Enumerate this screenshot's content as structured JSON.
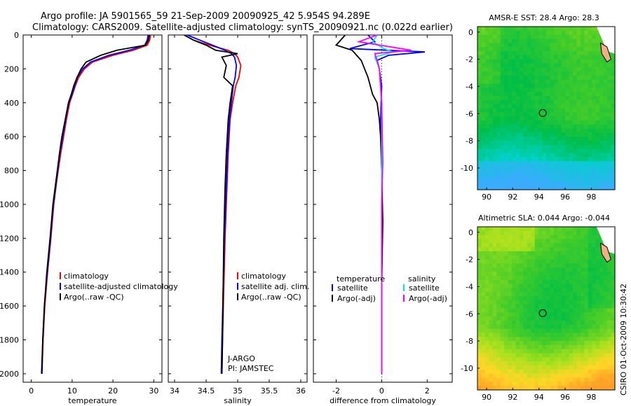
{
  "header": {
    "line1": "Argo profile: JA 5901565_59 21-Sep-2009 20090925_42 5.954S 94.289E",
    "line2": "Climatology: CARS2009. Satellite-adjusted climatology: synTS_20090921.nc (0.022d earlier)"
  },
  "credit": "CSIRO 01-Oct-2009 10:30:42",
  "colors": {
    "red": "#ff0000",
    "blue": "#0000ff",
    "black": "#000000",
    "cyan": "#00e5ff",
    "magenta": "#ff00ff"
  },
  "chart_data": [
    {
      "id": "temperature",
      "type": "line",
      "xlabel": "temperature",
      "xlim": [
        -2,
        32
      ],
      "ylim": [
        0,
        2050
      ],
      "xticks": [
        0,
        10,
        20,
        30
      ],
      "yticks": [
        0,
        200,
        400,
        600,
        800,
        1000,
        1200,
        1400,
        1600,
        1800,
        2000
      ],
      "series": [
        {
          "name": "climatology",
          "color": "#ff0000",
          "x": [
            29.2,
            29.0,
            28.4,
            25,
            20,
            15,
            13,
            11.6,
            10.8,
            10.1,
            9.4,
            8.6,
            7.9,
            7.2,
            6.3,
            5.5,
            4.8,
            4.0,
            3.3,
            2.9,
            2.6
          ],
          "y": [
            0,
            30,
            60,
            90,
            120,
            160,
            200,
            250,
            300,
            350,
            400,
            500,
            600,
            700,
            850,
            1000,
            1200,
            1400,
            1600,
            1800,
            2000
          ]
        },
        {
          "name": "satellite-adjusted climatology",
          "color": "#0000ff",
          "x": [
            28.6,
            28.4,
            27.8,
            24,
            19,
            14.5,
            12.6,
            11.3,
            10.6,
            10.0,
            9.2,
            8.4,
            7.7,
            7.0,
            6.2,
            5.4,
            4.7,
            3.9,
            3.2,
            2.8,
            2.5
          ],
          "y": [
            0,
            30,
            60,
            90,
            120,
            160,
            200,
            250,
            300,
            350,
            400,
            500,
            600,
            700,
            850,
            1000,
            1200,
            1400,
            1600,
            1800,
            2000
          ]
        },
        {
          "name": "Argo(..raw -QC)",
          "color": "#000000",
          "x": [
            28.9,
            28.7,
            28.0,
            21,
            17,
            13.4,
            12.2,
            11.2,
            10.4,
            9.8,
            9.1,
            8.3,
            7.5,
            6.9,
            6.1,
            5.3,
            4.6,
            3.8,
            3.2,
            2.8,
            2.6
          ],
          "y": [
            0,
            30,
            60,
            90,
            120,
            160,
            200,
            250,
            300,
            350,
            400,
            500,
            600,
            700,
            850,
            1000,
            1200,
            1400,
            1600,
            1800,
            2000
          ]
        }
      ],
      "legend": [
        "climatology",
        "satellite-adjusted climatology",
        "Argo(..raw -QC)"
      ]
    },
    {
      "id": "salinity",
      "type": "line",
      "xlabel": "salinity",
      "xlim": [
        33.9,
        36.1
      ],
      "ylim": [
        0,
        2050
      ],
      "xticks": [
        34,
        34.5,
        35,
        35.5,
        36
      ],
      "yticks": [
        0,
        200,
        400,
        600,
        800,
        1000,
        1200,
        1400,
        1600,
        1800,
        2000
      ],
      "series": [
        {
          "name": "climatology",
          "color": "#ff0000",
          "x": [
            34.15,
            34.3,
            34.55,
            34.85,
            34.95,
            35.0,
            35.05,
            35.02,
            34.97,
            34.92,
            34.88,
            34.85,
            34.83,
            34.8,
            34.78,
            34.76,
            34.75
          ],
          "y": [
            0,
            30,
            60,
            90,
            110,
            130,
            180,
            250,
            300,
            400,
            500,
            700,
            900,
            1200,
            1500,
            1800,
            2000
          ]
        },
        {
          "name": "satellite adj. clim.",
          "color": "#0000ff",
          "x": [
            34.2,
            34.4,
            34.6,
            34.8,
            34.9,
            34.95,
            34.98,
            34.96,
            34.93,
            34.9,
            34.87,
            34.84,
            34.82,
            34.79,
            34.77,
            34.75,
            34.74
          ],
          "y": [
            0,
            30,
            60,
            90,
            110,
            130,
            180,
            250,
            300,
            400,
            500,
            700,
            900,
            1200,
            1500,
            1800,
            2000
          ]
        },
        {
          "name": "Argo(..raw -QC)",
          "color": "#000000",
          "x": [
            34.15,
            34.3,
            34.5,
            34.65,
            35.0,
            34.75,
            34.82,
            34.78,
            34.92,
            34.88,
            34.85,
            34.82,
            34.8,
            34.78,
            34.77,
            34.76,
            34.75
          ],
          "y": [
            0,
            30,
            60,
            90,
            110,
            130,
            180,
            250,
            300,
            400,
            500,
            700,
            900,
            1200,
            1500,
            1800,
            2000
          ]
        }
      ],
      "legend": [
        "climatology",
        "satellite adj. clim.",
        "Argo(..raw -QC)"
      ],
      "annotations": [
        "J-ARGO",
        "PI: JAMSTEC"
      ]
    },
    {
      "id": "difference",
      "type": "line",
      "xlabel": "difference from climatology",
      "xlim": [
        -3,
        3.1
      ],
      "ylim": [
        0,
        2050
      ],
      "xticks": [
        -2,
        0,
        2
      ],
      "yticks": [
        0,
        200,
        400,
        600,
        800,
        1000,
        1200,
        1400,
        1600,
        1800,
        2000
      ],
      "series": [
        {
          "name": "temperature satellite",
          "color": "#0000ff",
          "x": [
            -0.6,
            -0.3,
            -1.4,
            1.9,
            0.3,
            -0.2,
            -0.1,
            0.0,
            -0.05,
            0.0,
            0.0,
            0.0,
            0.0
          ],
          "y": [
            0,
            40,
            80,
            100,
            120,
            150,
            200,
            300,
            500,
            800,
            1200,
            1600,
            2000
          ]
        },
        {
          "name": "temperature Argo(-adj)",
          "color": "#000000",
          "x": [
            -1.6,
            -2.0,
            -1.3,
            -0.9,
            -0.6,
            -0.4,
            -0.2,
            -0.1,
            -0.05,
            0.0,
            0.05,
            0.0,
            0.0
          ],
          "y": [
            0,
            60,
            90,
            150,
            250,
            350,
            400,
            500,
            600,
            800,
            1100,
            1500,
            2000
          ]
        },
        {
          "name": "salinity satellite",
          "color": "#00e5ff",
          "x": [
            -0.2,
            -0.4,
            0.1,
            0.5,
            -0.3,
            -0.1,
            0.0,
            0.0,
            0.0,
            0.0,
            0.0,
            0.0
          ],
          "y": [
            0,
            40,
            80,
            100,
            130,
            200,
            400,
            700,
            1000,
            1400,
            1800,
            2000
          ]
        },
        {
          "name": "salinity Argo(-adj)",
          "color": "#ff00ff",
          "x": [
            -0.2,
            -1.0,
            1.3,
            -0.3,
            -0.2,
            -0.1,
            0.0,
            0.05,
            0.0,
            0.0,
            0.0,
            0.0
          ],
          "y": [
            0,
            40,
            90,
            110,
            150,
            200,
            400,
            750,
            1000,
            1400,
            1800,
            2000
          ]
        }
      ],
      "legend_headers": [
        "temperature",
        "salinity"
      ],
      "legend": [
        "satellite",
        "Argo(-adj)",
        "satellite",
        "Argo(-adj)"
      ]
    }
  ],
  "maps": [
    {
      "id": "sst",
      "title": "AMSR-E SST: 28.4 Argo: 28.3",
      "xticks": [
        90,
        92,
        94,
        96,
        98
      ],
      "yticks": [
        -2,
        -4,
        -6,
        -8,
        -10
      ],
      "ytick0": 0,
      "marker": {
        "lon": 94.289,
        "lat": -5.954
      }
    },
    {
      "id": "sla",
      "title": "Altimetric SLA: 0.044 Argo: -0.044",
      "xticks": [
        90,
        92,
        94,
        96,
        98
      ],
      "yticks": [
        -2,
        -4,
        -6,
        -8,
        -10
      ],
      "ytick0": 0,
      "marker": {
        "lon": 94.289,
        "lat": -5.954
      }
    }
  ]
}
